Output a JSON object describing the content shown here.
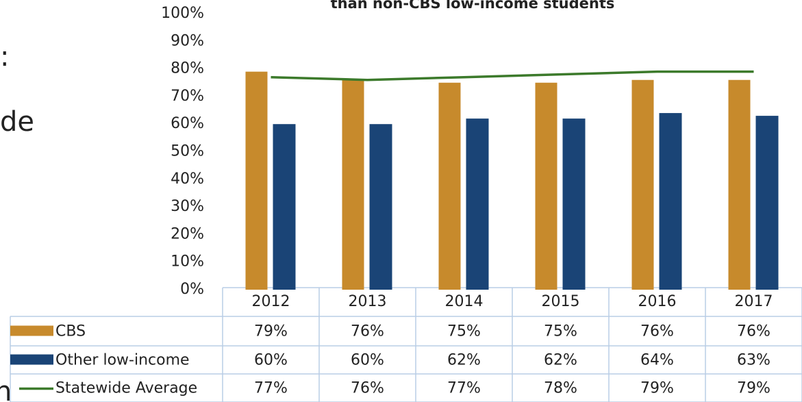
{
  "chart_data": {
    "type": "bar",
    "title": "than non-CBS low-income students",
    "side_text": [
      ":",
      "de",
      "n"
    ],
    "categories": [
      "2012",
      "2013",
      "2014",
      "2015",
      "2016",
      "2017"
    ],
    "series": [
      {
        "name": "CBS",
        "type": "bar",
        "color": "#c78a2c",
        "values": [
          79,
          76,
          75,
          75,
          76,
          76
        ],
        "value_labels": [
          "79%",
          "76%",
          "75%",
          "75%",
          "76%",
          "76%"
        ]
      },
      {
        "name": "Other low-income",
        "type": "bar",
        "color": "#1a4476",
        "values": [
          60,
          60,
          62,
          62,
          64,
          63
        ],
        "value_labels": [
          "60%",
          "60%",
          "62%",
          "62%",
          "64%",
          "63%"
        ]
      },
      {
        "name": "Statewide Average",
        "type": "line",
        "color": "#3c7a2b",
        "values": [
          77,
          76,
          77,
          78,
          79,
          79
        ],
        "value_labels": [
          "77%",
          "76%",
          "77%",
          "78%",
          "79%",
          "79%"
        ]
      }
    ],
    "ylim": [
      0,
      100
    ],
    "yticks": [
      {
        "value": 0,
        "label": "0%"
      },
      {
        "value": 10,
        "label": "10%"
      },
      {
        "value": 20,
        "label": "20%"
      },
      {
        "value": 30,
        "label": "30%"
      },
      {
        "value": 40,
        "label": "40%"
      },
      {
        "value": 50,
        "label": "50%"
      },
      {
        "value": 60,
        "label": "60%"
      },
      {
        "value": 70,
        "label": "70%"
      },
      {
        "value": 80,
        "label": "80%"
      },
      {
        "value": 90,
        "label": "90%"
      },
      {
        "value": 100,
        "label": "100%"
      }
    ],
    "grid": false
  }
}
